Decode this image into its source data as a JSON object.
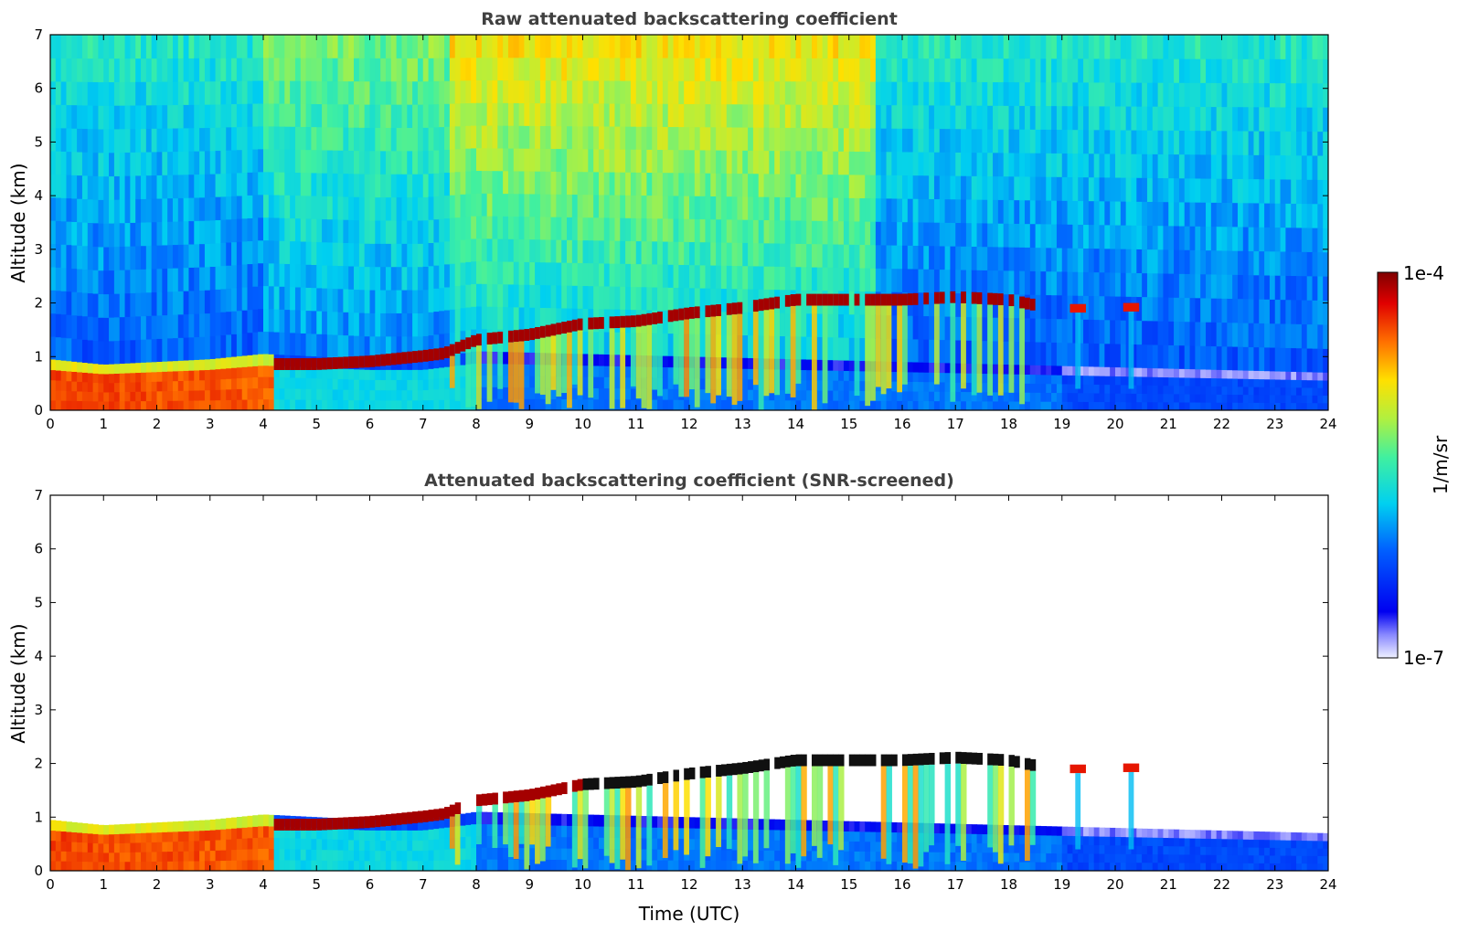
{
  "chart_data": [
    {
      "type": "heatmap",
      "title": "Raw attenuated backscattering coefficient",
      "xlabel": "",
      "ylabel": "Altitude (km)",
      "xlim": [
        0,
        24
      ],
      "ylim": [
        0,
        7
      ],
      "xticks": [
        "0",
        "1",
        "2",
        "3",
        "4",
        "5",
        "6",
        "7",
        "8",
        "9",
        "10",
        "11",
        "12",
        "13",
        "14",
        "15",
        "16",
        "17",
        "18",
        "19",
        "20",
        "21",
        "22",
        "23",
        "24"
      ],
      "yticks": [
        "0",
        "1",
        "2",
        "3",
        "4",
        "5",
        "6",
        "7"
      ],
      "screened": false,
      "boundary_layer_top_km": [
        [
          0,
          0.95
        ],
        [
          1,
          0.85
        ],
        [
          2,
          0.9
        ],
        [
          3,
          0.95
        ],
        [
          4,
          1.05
        ],
        [
          5,
          1.0
        ],
        [
          6,
          0.95
        ],
        [
          7,
          0.95
        ],
        [
          8,
          1.1
        ],
        [
          24,
          0.7
        ]
      ],
      "cloud_layer": [
        [
          4.2,
          0.85
        ],
        [
          5,
          0.85
        ],
        [
          6,
          0.9
        ],
        [
          7,
          1.0
        ],
        [
          7.4,
          1.05
        ],
        [
          8,
          1.3
        ],
        [
          9,
          1.4
        ],
        [
          10,
          1.6
        ],
        [
          11,
          1.65
        ],
        [
          12,
          1.8
        ],
        [
          13,
          1.9
        ],
        [
          14,
          2.05
        ],
        [
          15,
          2.05
        ],
        [
          16,
          2.05
        ],
        [
          17,
          2.1
        ],
        [
          18,
          2.05
        ],
        [
          18.5,
          1.95
        ]
      ],
      "isolated_clouds": [
        [
          19.3,
          1.9
        ],
        [
          20.3,
          1.92
        ]
      ]
    },
    {
      "type": "heatmap",
      "title": "Attenuated backscattering coefficient (SNR-screened)",
      "xlabel": "Time (UTC)",
      "ylabel": "Altitude (km)",
      "xlim": [
        0,
        24
      ],
      "ylim": [
        0,
        7
      ],
      "xticks": [
        "0",
        "1",
        "2",
        "3",
        "4",
        "5",
        "6",
        "7",
        "8",
        "9",
        "10",
        "11",
        "12",
        "13",
        "14",
        "15",
        "16",
        "17",
        "18",
        "19",
        "20",
        "21",
        "22",
        "23",
        "24"
      ],
      "yticks": [
        "0",
        "1",
        "2",
        "3",
        "4",
        "5",
        "6",
        "7"
      ],
      "screened": true
    }
  ],
  "colorbar": {
    "label": "1/m/sr",
    "max_label": "1e-4",
    "min_label": "1e-7",
    "scale": "log",
    "colormap": "jet"
  }
}
